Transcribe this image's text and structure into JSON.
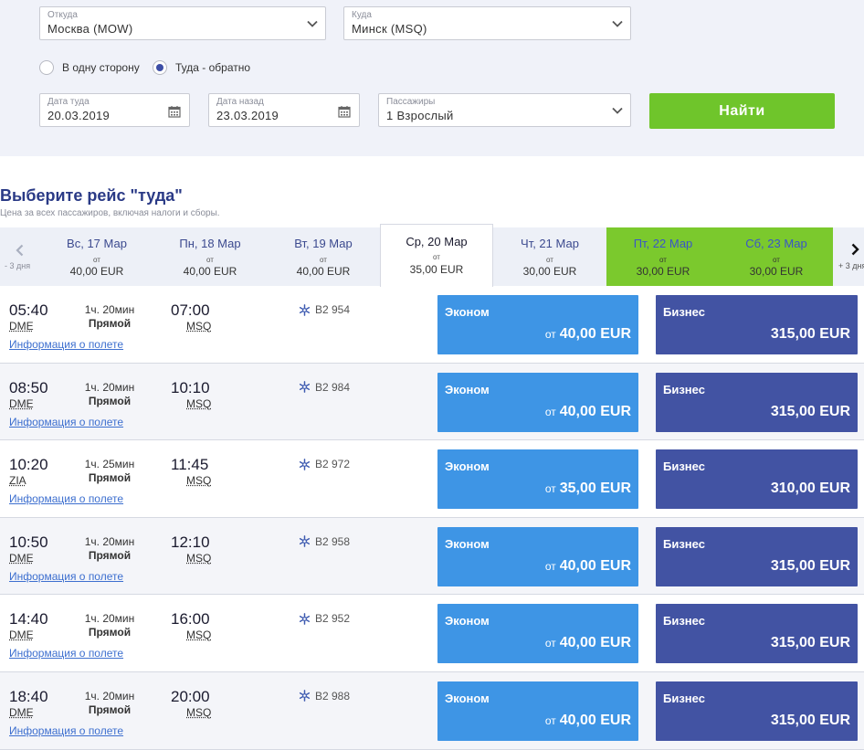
{
  "search": {
    "from": {
      "label": "Откуда",
      "value": "Москва (MOW)"
    },
    "to": {
      "label": "Куда",
      "value": "Минск (MSQ)"
    },
    "trip_type": {
      "one_way": "В одну сторону",
      "round_trip": "Туда - обратно",
      "selected": "round_trip"
    },
    "depart_date": {
      "label": "Дата туда",
      "value": "20.03.2019"
    },
    "return_date": {
      "label": "Дата назад",
      "value": "23.03.2019"
    },
    "passengers": {
      "label": "Пассажиры",
      "value": "1 Взрослый"
    },
    "find_button": "Найти"
  },
  "heading": "Выберите рейс \"туда\"",
  "subheading": "Цена за всех пассажиров, включая налоги и сборы.",
  "date_strip": {
    "prev_label": "- 3 дня",
    "next_label": "+ 3 дня",
    "days": [
      {
        "name": "Вс, 17 Мар",
        "from": "от",
        "price": "40,00 EUR",
        "state": "normal"
      },
      {
        "name": "Пн, 18 Мар",
        "from": "от",
        "price": "40,00 EUR",
        "state": "normal"
      },
      {
        "name": "Вт, 19 Мар",
        "from": "от",
        "price": "40,00 EUR",
        "state": "normal"
      },
      {
        "name": "Ср, 20 Мар",
        "from": "от",
        "price": "35,00 EUR",
        "state": "selected"
      },
      {
        "name": "Чт, 21 Мар",
        "from": "от",
        "price": "30,00 EUR",
        "state": "normal"
      },
      {
        "name": "Пт, 22 Мар",
        "from": "от",
        "price": "30,00 EUR",
        "state": "green"
      },
      {
        "name": "Сб, 23 Мар",
        "from": "от",
        "price": "30,00 EUR",
        "state": "green"
      }
    ]
  },
  "flight_labels": {
    "info_link": "Информация о полете",
    "direct": "Прямой",
    "economy": "Эконом",
    "business": "Бизнес",
    "from": "от"
  },
  "flights": [
    {
      "dep_time": "05:40",
      "dep_code": "DME",
      "duration": "1ч. 20мин",
      "arr_time": "07:00",
      "arr_code": "MSQ",
      "flight_no": "B2 954",
      "economy_price": "40,00 EUR",
      "business_price": "315,00 EUR"
    },
    {
      "dep_time": "08:50",
      "dep_code": "DME",
      "duration": "1ч. 20мин",
      "arr_time": "10:10",
      "arr_code": "MSQ",
      "flight_no": "B2 984",
      "economy_price": "40,00 EUR",
      "business_price": "315,00 EUR"
    },
    {
      "dep_time": "10:20",
      "dep_code": "ZIA",
      "duration": "1ч. 25мин",
      "arr_time": "11:45",
      "arr_code": "MSQ",
      "flight_no": "B2 972",
      "economy_price": "35,00 EUR",
      "business_price": "310,00 EUR"
    },
    {
      "dep_time": "10:50",
      "dep_code": "DME",
      "duration": "1ч. 20мин",
      "arr_time": "12:10",
      "arr_code": "MSQ",
      "flight_no": "B2 958",
      "economy_price": "40,00 EUR",
      "business_price": "315,00 EUR"
    },
    {
      "dep_time": "14:40",
      "dep_code": "DME",
      "duration": "1ч. 20мин",
      "arr_time": "16:00",
      "arr_code": "MSQ",
      "flight_no": "B2 952",
      "economy_price": "40,00 EUR",
      "business_price": "315,00 EUR"
    },
    {
      "dep_time": "18:40",
      "dep_code": "DME",
      "duration": "1ч. 20мин",
      "arr_time": "20:00",
      "arr_code": "MSQ",
      "flight_no": "B2 988",
      "economy_price": "40,00 EUR",
      "business_price": "315,00 EUR"
    }
  ],
  "colors": {
    "find_button": "#6fc52b",
    "economy": "#3e95e5",
    "business": "#4253a3",
    "heading": "#2a3a86",
    "green_day": "#7bc92d"
  },
  "icons": {
    "dropdown": "chevron-down-icon",
    "calendar": "calendar-icon",
    "airline": "airline-logo-icon",
    "prev": "chevron-left-icon",
    "next": "chevron-right-icon"
  }
}
